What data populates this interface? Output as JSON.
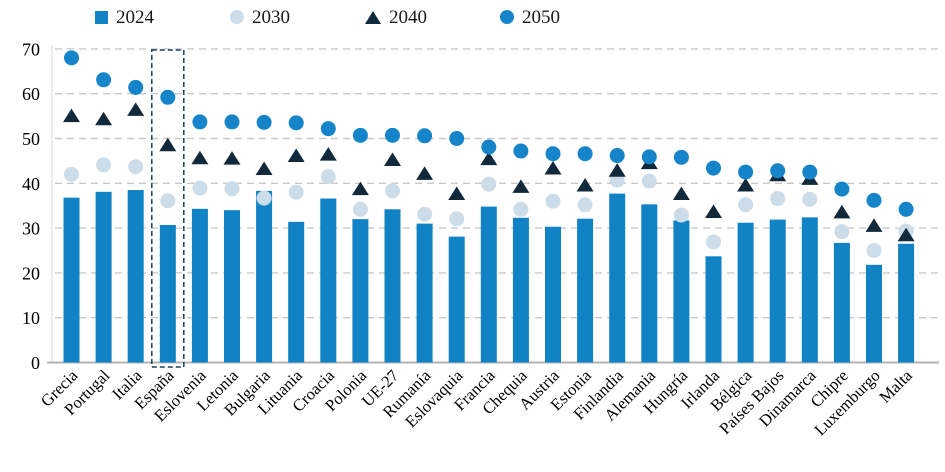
{
  "colors": {
    "y2024": "#1182c4",
    "y2030": "#ccdce8",
    "y2040": "#12293c",
    "y2050": "#1584c8",
    "grid": "#c9c9c9",
    "axis_line": "#b3b3b3",
    "highlight_box": "#17405f"
  },
  "legend": {
    "items": [
      {
        "label": "2024",
        "marker": "square",
        "color": "#1182c4"
      },
      {
        "label": "2030",
        "marker": "circle",
        "color": "#ccdce8"
      },
      {
        "label": "2040",
        "marker": "triangle",
        "color": "#12293c"
      },
      {
        "label": "2050",
        "marker": "circle",
        "color": "#1584c8"
      }
    ]
  },
  "chart_data": {
    "type": "bar",
    "title": "",
    "xlabel": "",
    "ylabel": "",
    "ylim": [
      0,
      70
    ],
    "yticks": [
      0,
      10,
      20,
      30,
      40,
      50,
      60,
      70
    ],
    "grid": "horizontal-dashed",
    "legend_position": "top",
    "highlight_category": "España",
    "categories": [
      "Grecia",
      "Portugal",
      "Italia",
      "España",
      "Eslovenia",
      "Letonia",
      "Bulgaria",
      "Lituania",
      "Croacia",
      "Polonia",
      "UE-27",
      "Rumanía",
      "Eslovaquia",
      "Francia",
      "Chequia",
      "Austria",
      "Estonia",
      "Finlandia",
      "Alemania",
      "Hungría",
      "Irlanda",
      "Bélgica",
      "Países Bajos",
      "Dinamarca",
      "Chipre",
      "Luxemburgo",
      "Malta"
    ],
    "series": [
      {
        "name": "2024",
        "type": "bar",
        "color": "#1182c4",
        "values": [
          36.8,
          38.1,
          38.5,
          30.7,
          34.3,
          34.0,
          38.3,
          31.4,
          36.6,
          32.0,
          34.2,
          31.0,
          28.1,
          34.8,
          32.3,
          30.3,
          32.1,
          37.7,
          35.3,
          31.7,
          23.7,
          31.2,
          31.9,
          32.4,
          26.7,
          21.8,
          26.5
        ]
      },
      {
        "name": "2030",
        "type": "scatter-circle",
        "color": "#ccdce8",
        "values": [
          42.0,
          44.1,
          43.7,
          36.1,
          38.9,
          38.8,
          36.7,
          38.0,
          41.5,
          34.2,
          38.3,
          33.1,
          32.1,
          39.8,
          34.2,
          36.0,
          35.2,
          40.7,
          40.5,
          32.9,
          26.9,
          35.2,
          36.6,
          36.4,
          29.2,
          25.0,
          29.3
        ]
      },
      {
        "name": "2040",
        "type": "scatter-triangle",
        "color": "#12293c",
        "values": [
          55.0,
          54.3,
          56.4,
          48.5,
          45.6,
          45.5,
          43.2,
          46.1,
          46.4,
          38.7,
          45.2,
          42.1,
          37.6,
          45.4,
          39.2,
          43.3,
          39.5,
          42.8,
          44.5,
          37.6,
          33.6,
          39.5,
          41.8,
          41.0,
          33.5,
          30.5,
          28.4
        ]
      },
      {
        "name": "2050",
        "type": "scatter-circle",
        "color": "#1584c8",
        "values": [
          68.0,
          63.1,
          61.4,
          59.2,
          53.7,
          53.7,
          53.6,
          53.5,
          52.2,
          50.7,
          50.7,
          50.6,
          50.0,
          48.1,
          47.2,
          46.6,
          46.6,
          46.2,
          45.9,
          45.8,
          43.4,
          42.5,
          42.8,
          42.5,
          38.7,
          36.2,
          34.2
        ]
      }
    ]
  }
}
